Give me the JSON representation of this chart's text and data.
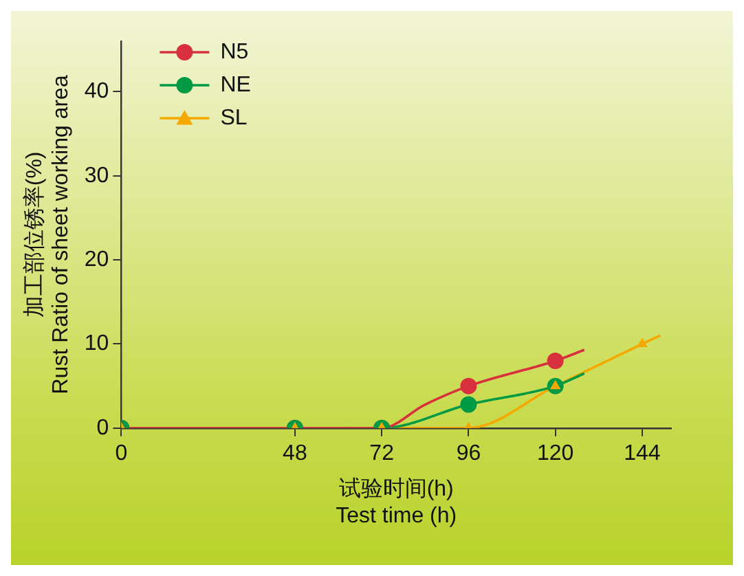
{
  "chart_data": {
    "type": "line",
    "xlabel": "试验时间(h)\nTest time (h)",
    "ylabel": "加工部位锈率(%)\nRust Ratio of sheet working area",
    "xlim": [
      0,
      152
    ],
    "xticks": [
      0,
      48,
      72,
      96,
      120,
      144
    ],
    "ylim": [
      0,
      46
    ],
    "yticks": [
      0,
      10,
      20,
      30,
      40
    ],
    "grid": false,
    "legend": "top left",
    "series": [
      {
        "name": "N5",
        "type": "scatter",
        "marker": "circle",
        "color": "#d9303e",
        "x": [
          0,
          48,
          72,
          96,
          120
        ],
        "values": [
          0,
          0,
          0,
          5,
          8
        ]
      },
      {
        "name": "NE",
        "type": "scatter",
        "marker": "circle",
        "color": "#009a44",
        "x": [
          0,
          48,
          72,
          96,
          120
        ],
        "values": [
          0,
          0,
          0,
          2.8,
          5
        ]
      },
      {
        "name": "SL",
        "type": "scatter",
        "marker": "triangle",
        "color": "#f5a800",
        "x": [
          0,
          48,
          72,
          96,
          120,
          144
        ],
        "values": [
          0,
          0,
          0,
          0,
          5,
          10
        ]
      },
      {
        "type": "line",
        "marker": "none",
        "color": "#d9303e",
        "x": [
          0,
          48,
          72,
          84,
          96,
          120,
          128
        ],
        "values": [
          0,
          0,
          0,
          2.8,
          5,
          8,
          9.3
        ]
      },
      {
        "type": "line",
        "marker": "none",
        "color": "#009a44",
        "x": [
          0,
          48,
          72,
          96,
          120,
          128
        ],
        "values": [
          0,
          0,
          0,
          2.8,
          5,
          6.5
        ]
      },
      {
        "type": "line",
        "marker": "none",
        "color": "#f5a800",
        "x": [
          0,
          48,
          72,
          96,
          120,
          144,
          149
        ],
        "values": [
          0,
          0,
          0,
          0,
          5,
          10,
          11
        ]
      }
    ]
  }
}
